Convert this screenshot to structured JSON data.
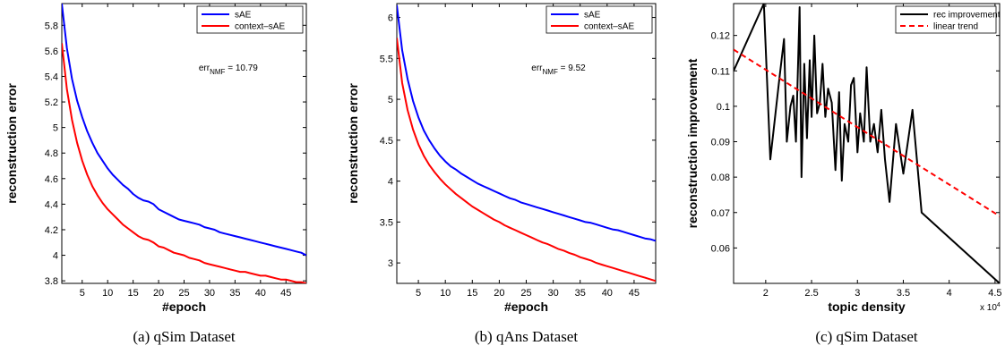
{
  "chart_data": [
    {
      "type": "line",
      "xlabel": "#epoch",
      "ylabel": "reconstruction error",
      "caption": "(a)  qSim Dataset",
      "xlim": [
        1,
        49
      ],
      "ylim": [
        3.78,
        5.97
      ],
      "xticks": [
        5,
        10,
        15,
        20,
        25,
        30,
        35,
        40,
        45
      ],
      "yticks": [
        3.8,
        4,
        4.2,
        4.4,
        4.6,
        4.8,
        5,
        5.2,
        5.4,
        5.6,
        5.8
      ],
      "ytick_labels": [
        "3.8",
        "4",
        "4.2",
        "4.4",
        "4.6",
        "4.8",
        "5",
        "5.2",
        "5.4",
        "5.6",
        "5.8"
      ],
      "legend_position": "top-right",
      "annotation": {
        "prefix": "err",
        "sub": "NMF",
        "suffix": " = 10.79"
      },
      "series": [
        {
          "name": "sAE",
          "color": "#0000ff",
          "x": [
            1,
            2,
            3,
            4,
            5,
            6,
            7,
            8,
            9,
            10,
            11,
            12,
            13,
            14,
            15,
            16,
            17,
            18,
            19,
            20,
            21,
            22,
            23,
            24,
            25,
            26,
            27,
            28,
            29,
            30,
            31,
            32,
            33,
            34,
            35,
            36,
            37,
            38,
            39,
            40,
            41,
            42,
            43,
            44,
            45,
            46,
            47,
            48,
            49
          ],
          "values": [
            5.97,
            5.62,
            5.38,
            5.21,
            5.08,
            4.97,
            4.88,
            4.8,
            4.74,
            4.68,
            4.63,
            4.59,
            4.55,
            4.52,
            4.48,
            4.45,
            4.43,
            4.42,
            4.4,
            4.36,
            4.34,
            4.32,
            4.3,
            4.28,
            4.27,
            4.26,
            4.25,
            4.24,
            4.22,
            4.21,
            4.2,
            4.18,
            4.17,
            4.16,
            4.15,
            4.14,
            4.13,
            4.12,
            4.11,
            4.1,
            4.09,
            4.08,
            4.07,
            4.06,
            4.05,
            4.04,
            4.03,
            4.02,
            4.0
          ]
        },
        {
          "name": "context–sAE",
          "color": "#ff0000",
          "x": [
            1,
            2,
            3,
            4,
            5,
            6,
            7,
            8,
            9,
            10,
            11,
            12,
            13,
            14,
            15,
            16,
            17,
            18,
            19,
            20,
            21,
            22,
            23,
            24,
            25,
            26,
            27,
            28,
            29,
            30,
            31,
            32,
            33,
            34,
            35,
            36,
            37,
            38,
            39,
            40,
            41,
            42,
            43,
            44,
            45,
            46,
            47,
            48,
            49
          ],
          "values": [
            5.66,
            5.3,
            5.06,
            4.88,
            4.74,
            4.63,
            4.54,
            4.47,
            4.41,
            4.36,
            4.32,
            4.28,
            4.24,
            4.21,
            4.18,
            4.15,
            4.13,
            4.12,
            4.1,
            4.07,
            4.06,
            4.04,
            4.02,
            4.01,
            4.0,
            3.98,
            3.97,
            3.96,
            3.94,
            3.93,
            3.92,
            3.91,
            3.9,
            3.89,
            3.88,
            3.87,
            3.87,
            3.86,
            3.85,
            3.84,
            3.84,
            3.83,
            3.82,
            3.81,
            3.81,
            3.8,
            3.79,
            3.79,
            3.78
          ]
        }
      ]
    },
    {
      "type": "line",
      "xlabel": "#epoch",
      "ylabel": "reconstruction error",
      "caption": "(b)  qAns Dataset",
      "xlim": [
        1,
        49
      ],
      "ylim": [
        2.75,
        6.17
      ],
      "xticks": [
        5,
        10,
        15,
        20,
        25,
        30,
        35,
        40,
        45
      ],
      "yticks": [
        3,
        3.5,
        4,
        4.5,
        5,
        5.5,
        6
      ],
      "ytick_labels": [
        "3",
        "3.5",
        "4",
        "4.5",
        "5",
        "5.5",
        "6"
      ],
      "legend_position": "top-right",
      "annotation": {
        "prefix": "err",
        "sub": "NMF",
        "suffix": " = 9.52"
      },
      "series": [
        {
          "name": "sAE",
          "color": "#0000ff",
          "x": [
            1,
            2,
            3,
            4,
            5,
            6,
            7,
            8,
            9,
            10,
            11,
            12,
            13,
            14,
            15,
            16,
            17,
            18,
            19,
            20,
            21,
            22,
            23,
            24,
            25,
            26,
            27,
            28,
            29,
            30,
            31,
            32,
            33,
            34,
            35,
            36,
            37,
            38,
            39,
            40,
            41,
            42,
            43,
            44,
            45,
            46,
            47,
            48,
            49
          ],
          "values": [
            6.15,
            5.6,
            5.25,
            4.98,
            4.78,
            4.62,
            4.5,
            4.4,
            4.31,
            4.24,
            4.18,
            4.14,
            4.09,
            4.05,
            4.01,
            3.97,
            3.94,
            3.91,
            3.88,
            3.85,
            3.82,
            3.79,
            3.77,
            3.74,
            3.72,
            3.7,
            3.68,
            3.66,
            3.64,
            3.62,
            3.6,
            3.58,
            3.56,
            3.54,
            3.52,
            3.5,
            3.49,
            3.47,
            3.45,
            3.43,
            3.41,
            3.4,
            3.38,
            3.36,
            3.34,
            3.32,
            3.3,
            3.29,
            3.27
          ]
        },
        {
          "name": "context–sAE",
          "color": "#ff0000",
          "x": [
            1,
            2,
            3,
            4,
            5,
            6,
            7,
            8,
            9,
            10,
            11,
            12,
            13,
            14,
            15,
            16,
            17,
            18,
            19,
            20,
            21,
            22,
            23,
            24,
            25,
            26,
            27,
            28,
            29,
            30,
            31,
            32,
            33,
            34,
            35,
            36,
            37,
            38,
            39,
            40,
            41,
            42,
            43,
            44,
            45,
            46,
            47,
            48,
            49
          ],
          "values": [
            5.75,
            5.2,
            4.87,
            4.63,
            4.45,
            4.31,
            4.2,
            4.11,
            4.03,
            3.96,
            3.9,
            3.84,
            3.79,
            3.74,
            3.69,
            3.65,
            3.61,
            3.57,
            3.53,
            3.5,
            3.46,
            3.43,
            3.4,
            3.37,
            3.34,
            3.31,
            3.28,
            3.25,
            3.23,
            3.2,
            3.17,
            3.15,
            3.12,
            3.1,
            3.07,
            3.05,
            3.03,
            3.0,
            2.98,
            2.96,
            2.94,
            2.92,
            2.9,
            2.88,
            2.86,
            2.84,
            2.82,
            2.8,
            2.78
          ]
        }
      ]
    },
    {
      "type": "line",
      "xlabel": "topic density",
      "ylabel": "reconstruction improvement",
      "caption": "(c)  qSim Dataset",
      "xlim": [
        1.65,
        4.55
      ],
      "ylim": [
        0.05,
        0.129
      ],
      "xticks": [
        2,
        2.5,
        3,
        3.5,
        4,
        4.5
      ],
      "yticks": [
        0.06,
        0.07,
        0.08,
        0.09,
        0.1,
        0.11,
        0.12
      ],
      "ytick_labels": [
        "0.06",
        "0.07",
        "0.08",
        "0.09",
        "0.1",
        "0.11",
        "0.12"
      ],
      "x_multiplier": {
        "base": "x 10",
        "exp": "4"
      },
      "legend_position": "top-right",
      "series": [
        {
          "name": "rec improvement",
          "color": "#000000",
          "dash": "solid",
          "x": [
            1.65,
            1.98,
            2.05,
            2.15,
            2.2,
            2.23,
            2.27,
            2.3,
            2.33,
            2.37,
            2.39,
            2.42,
            2.45,
            2.48,
            2.5,
            2.53,
            2.56,
            2.59,
            2.62,
            2.65,
            2.68,
            2.72,
            2.76,
            2.8,
            2.83,
            2.86,
            2.9,
            2.93,
            2.96,
            3.0,
            3.03,
            3.07,
            3.1,
            3.14,
            3.18,
            3.22,
            3.26,
            3.3,
            3.35,
            3.42,
            3.5,
            3.6,
            3.7,
            4.55
          ],
          "values": [
            0.11,
            0.129,
            0.085,
            0.108,
            0.119,
            0.09,
            0.1,
            0.103,
            0.09,
            0.128,
            0.08,
            0.112,
            0.091,
            0.113,
            0.097,
            0.12,
            0.098,
            0.101,
            0.112,
            0.097,
            0.105,
            0.101,
            0.082,
            0.104,
            0.079,
            0.095,
            0.09,
            0.106,
            0.108,
            0.087,
            0.098,
            0.09,
            0.111,
            0.09,
            0.095,
            0.087,
            0.099,
            0.085,
            0.073,
            0.095,
            0.081,
            0.099,
            0.07,
            0.05
          ]
        },
        {
          "name": "linear trend",
          "color": "#ff0000",
          "dash": "dashed",
          "x": [
            1.65,
            4.55
          ],
          "values": [
            0.116,
            0.069
          ]
        }
      ]
    }
  ]
}
